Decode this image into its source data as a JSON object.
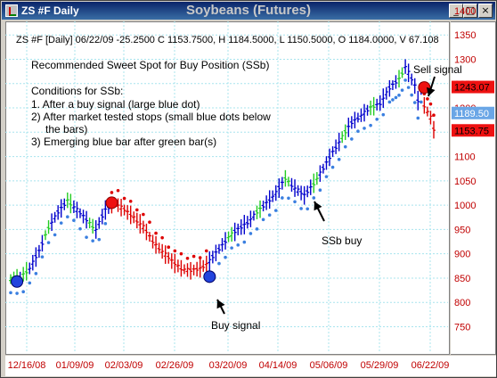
{
  "window": {
    "title": "ZS #F Daily",
    "chart_title": "Soybeans (Futures)",
    "buttons": {
      "minimize": "_",
      "maximize": "□",
      "close": "×"
    }
  },
  "info_line": "ZS #F [Daily] 06/22/09   -25.2500 C 1153.7500, H 1184.5000, L 1150.5000, O 1184.0000, V 67.108",
  "annotations": {
    "heading": "Recommended Sweet Spot for Buy Position (SSb)",
    "conditions_title": "Conditions for SSb:",
    "c1": "1. After a buy signal (large blue dot)",
    "c2a": "2) After market tested stops (small blue dots below",
    "c2b": "the bars)",
    "c3": "3) Emerging blue bar after green bar(s)",
    "sell_signal": "Sell signal",
    "buy_signal": "Buy signal",
    "ssb_buy": "SSb buy"
  },
  "colors": {
    "up_bar": "#0000cc",
    "green_bar": "#22cc22",
    "red_bar": "#dd0000",
    "stop_dots_blue": "#3a7fe0",
    "stop_dots_red": "#dd0000",
    "grid": "#a8e4ee",
    "axis_text": "#c00000",
    "price_tag_red": "#ee1111",
    "price_tag_blue": "#6aa6e6"
  },
  "chart_data": {
    "type": "ohlc",
    "y_ticks": [
      1400,
      1350,
      1300,
      1250,
      1200,
      1150,
      1100,
      1050,
      1000,
      950,
      900,
      850,
      800,
      750
    ],
    "ylim": [
      745,
      1410
    ],
    "x_ticks": [
      "12/16/08",
      "01/09/09",
      "02/03/09",
      "02/26/09",
      "03/20/09",
      "04/14/09",
      "05/06/09",
      "05/29/09",
      "06/22/09"
    ],
    "price_tags": [
      {
        "value": "1243.07",
        "price": 1243,
        "color": "red"
      },
      {
        "value": "1189.50",
        "price": 1189.5,
        "color": "blue"
      },
      {
        "value": "1153.75",
        "price": 1153.75,
        "color": "red"
      }
    ],
    "last_close": 1153.75,
    "signals": [
      {
        "type": "buy",
        "bar": 2,
        "price": 843
      },
      {
        "type": "sell",
        "bar": 32,
        "price": 1005
      },
      {
        "type": "buy",
        "bar": 63,
        "price": 853
      },
      {
        "type": "sell",
        "bar": 131,
        "price": 1242
      }
    ]
  }
}
